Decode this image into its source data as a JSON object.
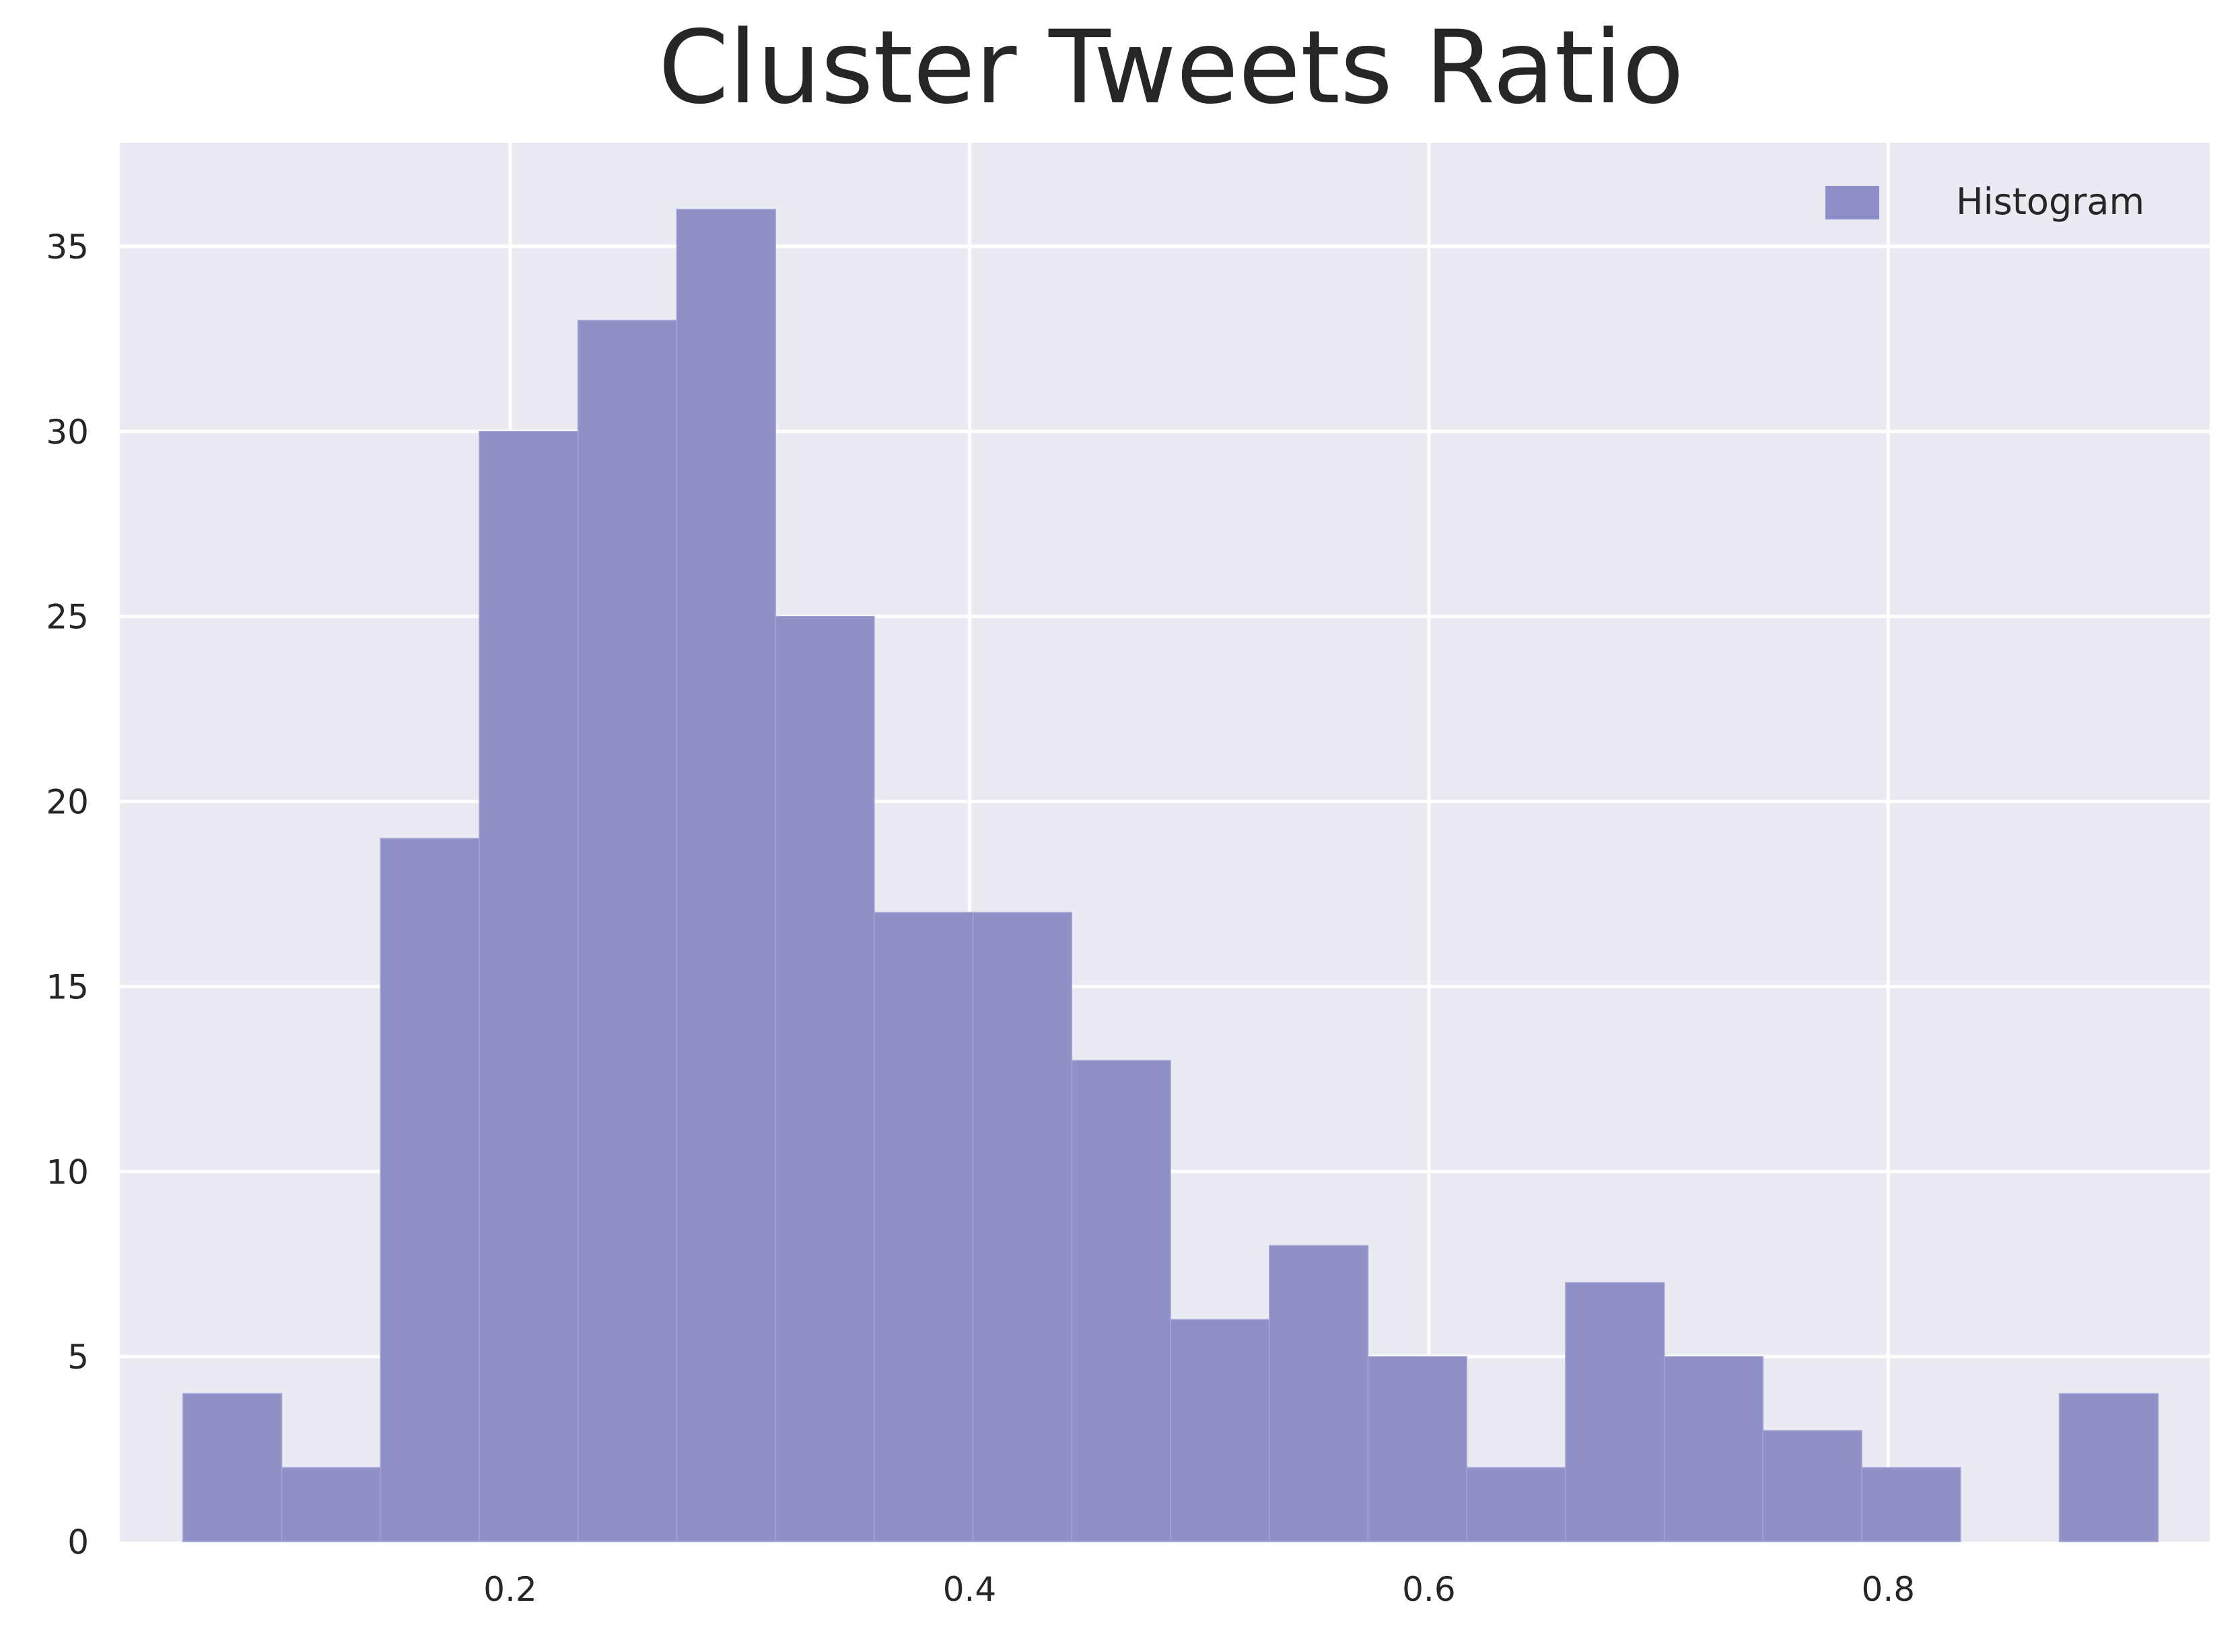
{
  "chart_data": {
    "type": "bar",
    "title": "Cluster Tweets Ratio",
    "xlabel": "",
    "ylabel": "",
    "xlim": [
      0.03,
      0.94
    ],
    "ylim": [
      0,
      37.8
    ],
    "xticks": [
      0.2,
      0.4,
      0.6,
      0.8
    ],
    "xtick_labels": [
      "0.2",
      "0.4",
      "0.6",
      "0.8"
    ],
    "yticks": [
      0,
      5,
      10,
      15,
      20,
      25,
      30,
      35
    ],
    "ytick_labels": [
      "0",
      "5",
      "10",
      "15",
      "20",
      "25",
      "30",
      "35"
    ],
    "grid": true,
    "legend": {
      "position": "top-right",
      "entries": [
        "Histogram"
      ]
    },
    "series": [
      {
        "name": "Histogram",
        "bin_edges": [
          0.0575,
          0.1005,
          0.1435,
          0.1865,
          0.2295,
          0.2725,
          0.3155,
          0.3585,
          0.4015,
          0.4445,
          0.4875,
          0.5305,
          0.5735,
          0.6165,
          0.6595,
          0.7025,
          0.7455,
          0.7885,
          0.8315,
          0.8745,
          0.9175
        ],
        "counts": [
          4,
          2,
          19,
          30,
          33,
          36,
          25,
          17,
          17,
          13,
          6,
          8,
          5,
          2,
          7,
          5,
          3,
          2,
          0,
          4
        ]
      }
    ],
    "colors": {
      "background": "#eaeaf2",
      "grid": "#ffffff",
      "bar": "#8e8ec8",
      "bar_edge": "#a4a4d4",
      "text": "#262626"
    }
  }
}
